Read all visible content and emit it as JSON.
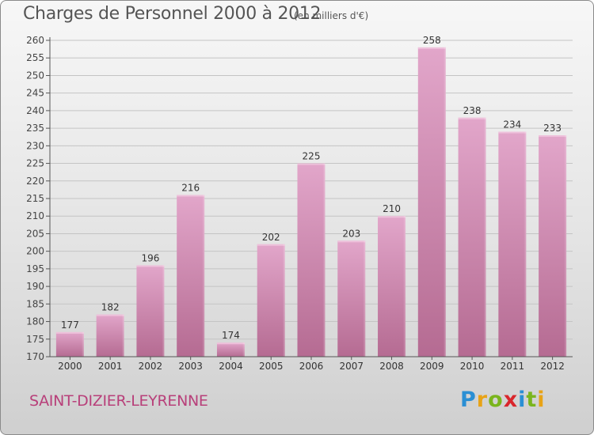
{
  "title": "Charges de Personnel 2000 à 2012",
  "subtitle": "(en milliers d'€)",
  "city": "SAINT-DIZIER-LEYRENNE",
  "logo": {
    "letters": [
      "P",
      "r",
      "o",
      "x",
      "i",
      "t",
      "i"
    ],
    "colors": [
      "#2a8fd4",
      "#e8a317",
      "#7ab51d",
      "#d9262c",
      "#2a8fd4",
      "#7ab51d",
      "#e8a317"
    ]
  },
  "colors": {
    "bar": "#d990bd",
    "bar_dark": "#b8658f",
    "city_text": "#b8407a"
  },
  "chart_data": {
    "type": "bar",
    "title": "Charges de Personnel 2000 à 2012",
    "categories": [
      "2000",
      "2001",
      "2002",
      "2003",
      "2004",
      "2005",
      "2006",
      "2007",
      "2008",
      "2009",
      "2010",
      "2011",
      "2012"
    ],
    "values": [
      177,
      182,
      196,
      216,
      174,
      202,
      225,
      203,
      210,
      258,
      238,
      234,
      233
    ],
    "ylim": [
      170,
      260
    ],
    "yticks": [
      170,
      175,
      180,
      185,
      190,
      195,
      200,
      205,
      210,
      215,
      220,
      225,
      230,
      235,
      240,
      245,
      250,
      255,
      260
    ],
    "grid": true,
    "data_labels": true
  }
}
